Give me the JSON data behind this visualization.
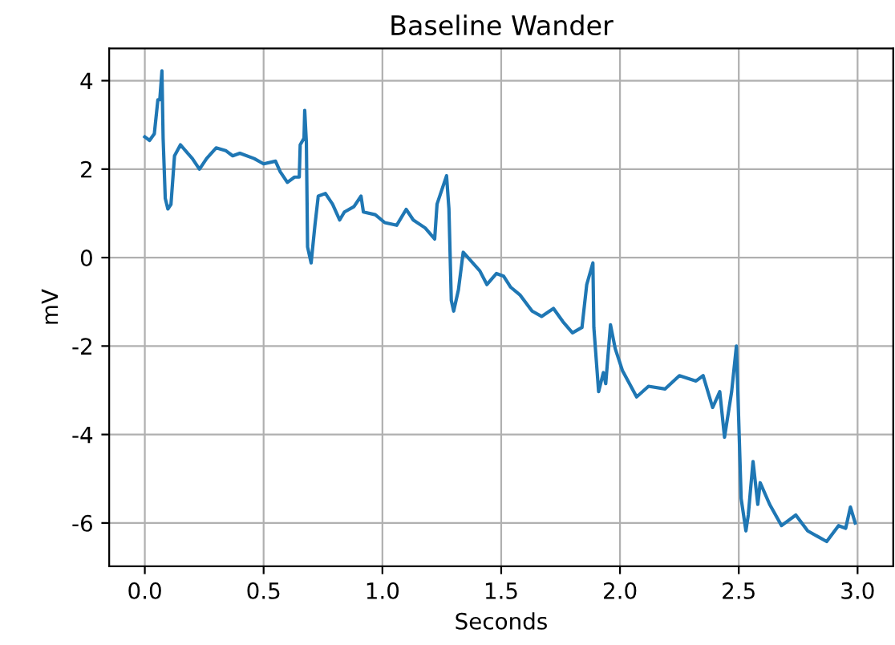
{
  "chart_data": {
    "type": "line",
    "title": "Baseline Wander",
    "xlabel": "Seconds",
    "ylabel": "mV",
    "xlim": [
      -0.15,
      3.15
    ],
    "ylim": [
      -6.98,
      4.73
    ],
    "xticks": [
      {
        "value": 0,
        "label": "0.0"
      },
      {
        "value": 0.5,
        "label": "0.5"
      },
      {
        "value": 1,
        "label": "1.0"
      },
      {
        "value": 1.5,
        "label": "1.5"
      },
      {
        "value": 2,
        "label": "2.0"
      },
      {
        "value": 2.5,
        "label": "2.5"
      },
      {
        "value": 3,
        "label": "3.0"
      }
    ],
    "yticks": [
      -6,
      -4,
      -2,
      0,
      2,
      4
    ],
    "grid": true,
    "series": [
      {
        "color": "#1f77b4",
        "x": [
          0,
          0.02,
          0.04,
          0.055,
          0.063,
          0.072,
          0.077,
          0.086,
          0.097,
          0.11,
          0.125,
          0.15,
          0.18,
          0.2,
          0.23,
          0.26,
          0.3,
          0.34,
          0.37,
          0.4,
          0.46,
          0.5,
          0.55,
          0.57,
          0.6,
          0.63,
          0.65,
          0.654,
          0.67,
          0.673,
          0.68,
          0.685,
          0.7,
          0.716,
          0.73,
          0.76,
          0.79,
          0.82,
          0.84,
          0.88,
          0.91,
          0.92,
          0.97,
          1.01,
          1.06,
          1.1,
          1.13,
          1.18,
          1.22,
          1.23,
          1.27,
          1.28,
          1.29,
          1.3,
          1.32,
          1.34,
          1.38,
          1.41,
          1.44,
          1.48,
          1.51,
          1.54,
          1.58,
          1.63,
          1.67,
          1.72,
          1.76,
          1.8,
          1.84,
          1.86,
          1.886,
          1.89,
          1.91,
          1.93,
          1.94,
          1.96,
          1.98,
          2.01,
          2.07,
          2.12,
          2.19,
          2.25,
          2.32,
          2.35,
          2.39,
          2.42,
          2.44,
          2.47,
          2.49,
          2.51,
          2.53,
          2.54,
          2.56,
          2.58,
          2.59,
          2.63,
          2.68,
          2.74,
          2.79,
          2.83,
          2.87,
          2.92,
          2.95,
          2.97,
          2.99
        ],
        "values": [
          2.73,
          2.65,
          2.8,
          3.57,
          3.57,
          4.22,
          2.7,
          1.34,
          1.1,
          1.2,
          2.3,
          2.55,
          2.36,
          2.24,
          2.0,
          2.24,
          2.48,
          2.42,
          2.3,
          2.36,
          2.24,
          2.12,
          2.18,
          1.94,
          1.7,
          1.82,
          1.82,
          2.55,
          2.7,
          3.33,
          2.6,
          0.24,
          -0.12,
          0.73,
          1.39,
          1.45,
          1.21,
          0.85,
          1.03,
          1.15,
          1.39,
          1.03,
          0.97,
          0.79,
          0.73,
          1.09,
          0.85,
          0.67,
          0.42,
          1.21,
          1.85,
          1.1,
          -0.97,
          -1.21,
          -0.73,
          0.12,
          -0.12,
          -0.3,
          -0.61,
          -0.36,
          -0.42,
          -0.67,
          -0.85,
          -1.21,
          -1.33,
          -1.15,
          -1.45,
          -1.7,
          -1.58,
          -0.61,
          -0.12,
          -1.58,
          -3.03,
          -2.6,
          -2.85,
          -1.52,
          -2.06,
          -2.55,
          -3.15,
          -2.91,
          -2.97,
          -2.67,
          -2.79,
          -2.67,
          -3.39,
          -3.03,
          -4.06,
          -3.03,
          -2.0,
          -5.45,
          -6.18,
          -5.82,
          -4.61,
          -5.58,
          -5.09,
          -5.58,
          -6.06,
          -5.82,
          -6.18,
          -6.3,
          -6.42,
          -6.06,
          -6.12,
          -5.64,
          -6.0
        ]
      }
    ]
  }
}
